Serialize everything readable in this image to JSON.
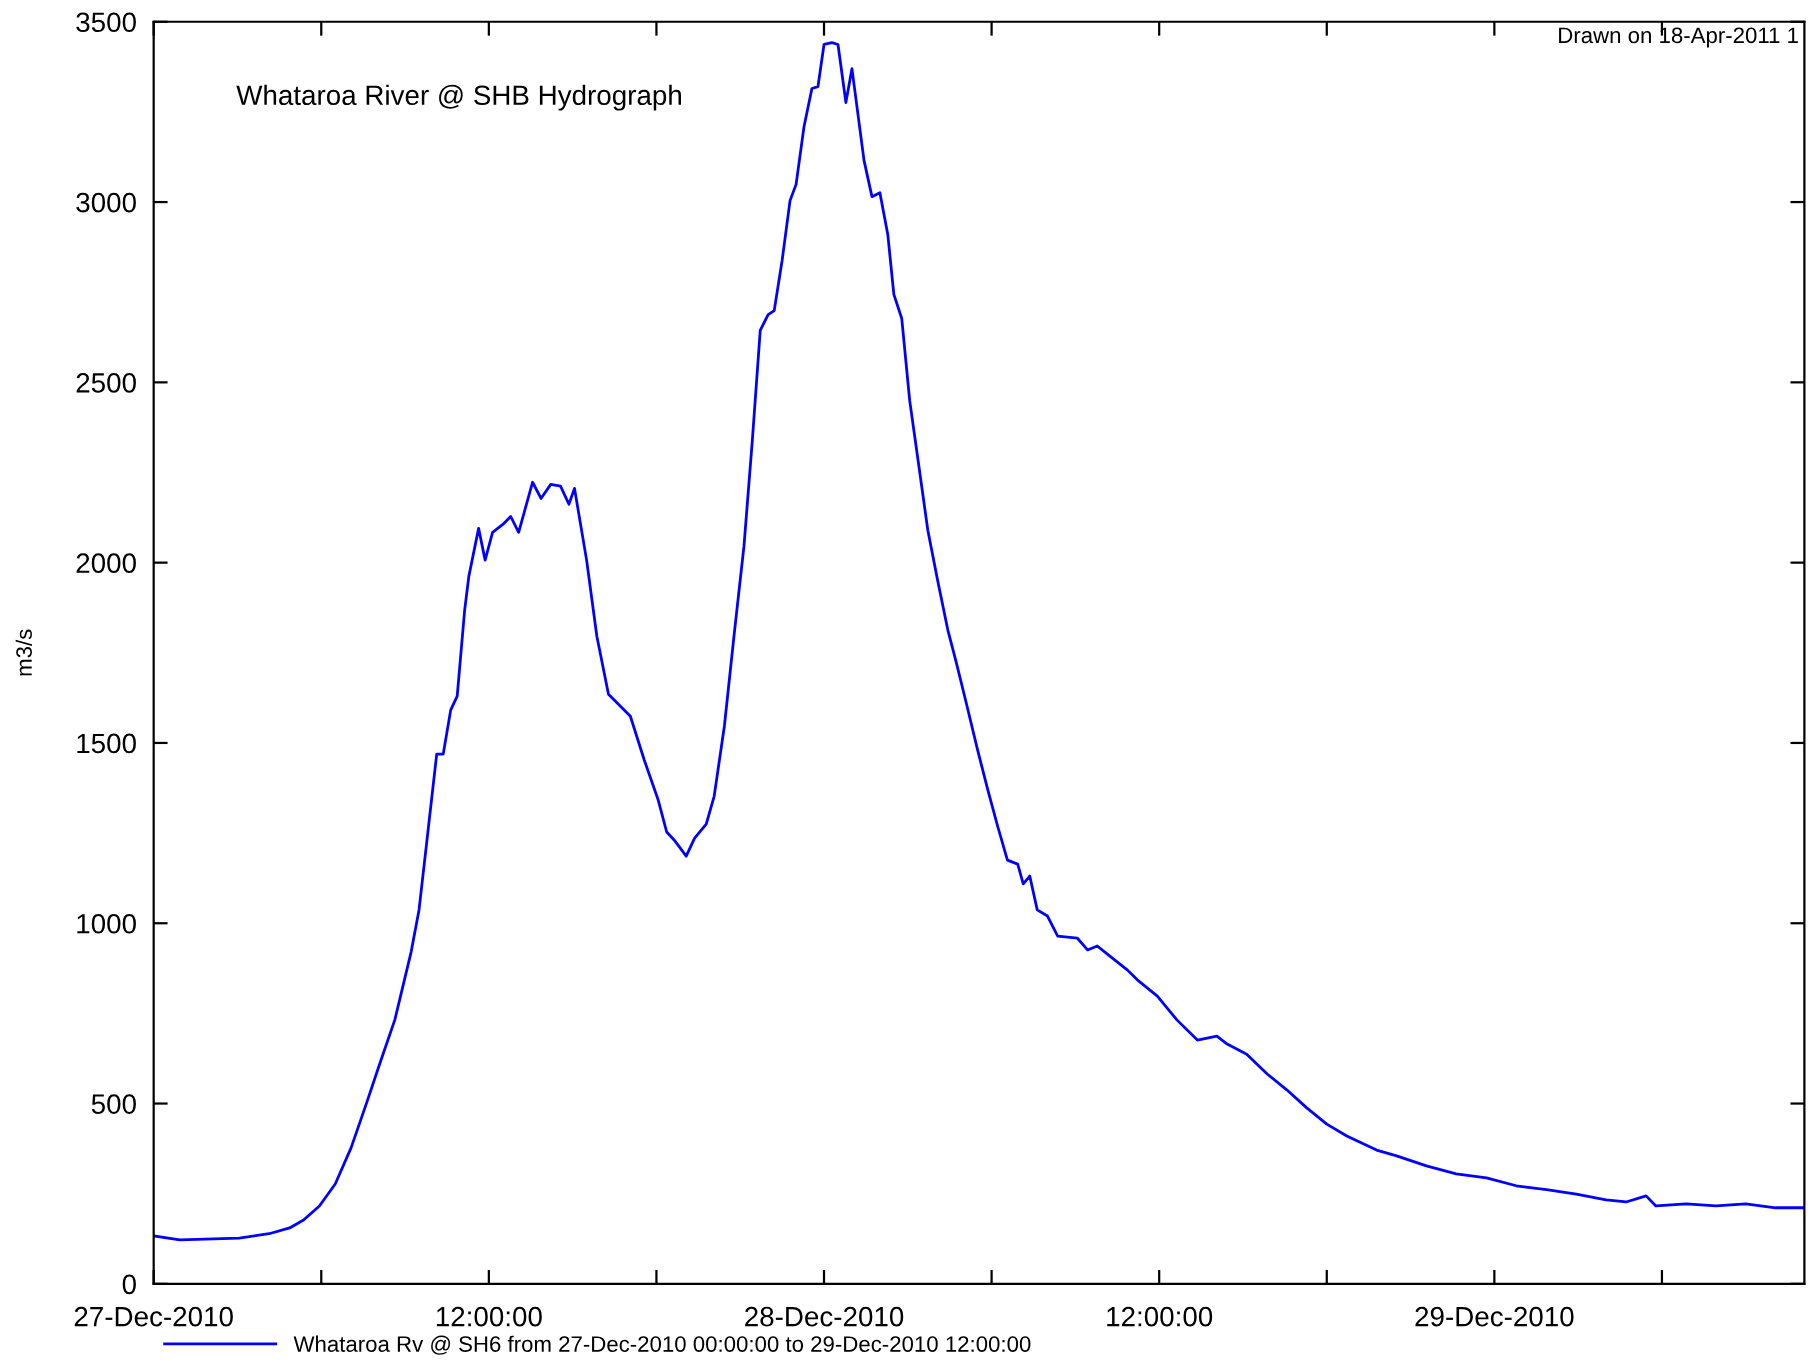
{
  "chart_data": {
    "type": "line",
    "title": "Whataroa River @ SHB Hydrograph",
    "ylabel": "m3/s",
    "annotations": [
      "Drawn on 18-Apr-2011 1"
    ],
    "x": [
      "2010-12-27T00:00",
      "2010-12-27T00:56",
      "2010-12-27T03:04",
      "2010-12-27T04:08",
      "2010-12-27T04:52",
      "2010-12-27T05:22",
      "2010-12-27T05:56",
      "2010-12-27T06:30",
      "2010-12-27T07:04",
      "2010-12-27T07:38",
      "2010-12-27T08:04",
      "2010-12-27T08:38",
      "2010-12-27T09:13",
      "2010-12-27T09:30",
      "2010-12-27T09:47",
      "2010-12-27T10:08",
      "2010-12-27T10:22",
      "2010-12-27T10:38",
      "2010-12-27T10:52",
      "2010-12-27T11:08",
      "2010-12-27T11:17",
      "2010-12-27T11:38",
      "2010-12-27T11:52",
      "2010-12-27T12:08",
      "2010-12-27T12:30",
      "2010-12-27T12:47",
      "2010-12-27T13:04",
      "2010-12-27T13:34",
      "2010-12-27T13:52",
      "2010-12-27T14:13",
      "2010-12-27T14:34",
      "2010-12-27T14:52",
      "2010-12-27T15:04",
      "2010-12-27T15:30",
      "2010-12-27T15:52",
      "2010-12-27T16:17",
      "2010-12-27T17:04",
      "2010-12-27T17:34",
      "2010-12-27T18:04",
      "2010-12-27T18:22",
      "2010-12-27T18:38",
      "2010-12-27T19:04",
      "2010-12-27T19:22",
      "2010-12-27T19:47",
      "2010-12-27T20:04",
      "2010-12-27T20:26",
      "2010-12-27T20:47",
      "2010-12-27T21:08",
      "2010-12-27T21:26",
      "2010-12-27T21:43",
      "2010-12-27T22:00",
      "2010-12-27T22:13",
      "2010-12-27T22:30",
      "2010-12-27T22:47",
      "2010-12-27T23:00",
      "2010-12-27T23:17",
      "2010-12-27T23:34",
      "2010-12-27T23:47",
      "2010-12-28T00:00",
      "2010-12-28T00:17",
      "2010-12-28T00:30",
      "2010-12-28T00:47",
      "2010-12-28T01:00",
      "2010-12-28T01:26",
      "2010-12-28T01:43",
      "2010-12-28T02:00",
      "2010-12-28T02:17",
      "2010-12-28T02:30",
      "2010-12-28T02:47",
      "2010-12-28T03:04",
      "2010-12-28T03:22",
      "2010-12-28T03:43",
      "2010-12-28T04:04",
      "2010-12-28T04:26",
      "2010-12-28T04:43",
      "2010-12-28T05:04",
      "2010-12-28T05:30",
      "2010-12-28T05:52",
      "2010-12-28T06:13",
      "2010-12-28T06:34",
      "2010-12-28T06:56",
      "2010-12-28T07:08",
      "2010-12-28T07:22",
      "2010-12-28T07:38",
      "2010-12-28T08:00",
      "2010-12-28T08:22",
      "2010-12-28T09:04",
      "2010-12-28T09:26",
      "2010-12-28T09:47",
      "2010-12-28T10:08",
      "2010-12-28T10:52",
      "2010-12-28T11:13",
      "2010-12-28T11:56",
      "2010-12-28T12:38",
      "2010-12-28T13:22",
      "2010-12-28T14:04",
      "2010-12-28T14:26",
      "2010-12-28T15:08",
      "2010-12-28T15:52",
      "2010-12-28T16:34",
      "2010-12-28T17:17",
      "2010-12-28T18:00",
      "2010-12-28T18:43",
      "2010-12-28T19:47",
      "2010-12-28T20:30",
      "2010-12-28T21:34",
      "2010-12-28T22:38",
      "2010-12-28T23:43",
      "2010-12-29T00:47",
      "2010-12-29T01:52",
      "2010-12-29T02:56",
      "2010-12-29T04:00",
      "2010-12-29T04:43",
      "2010-12-29T05:26",
      "2010-12-29T05:47",
      "2010-12-29T06:52",
      "2010-12-29T07:56",
      "2010-12-29T09:00",
      "2010-12-29T10:04",
      "2010-12-29T11:04"
    ],
    "series": [
      {
        "name": "Whataroa Rv @ SH6 from 27-Dec-2010 00:00:00 to 29-Dec-2010 12:00:00",
        "color": "#0000ff",
        "values": [
          133,
          122,
          127,
          139,
          155,
          177,
          216,
          277,
          377,
          504,
          604,
          732,
          920,
          1037,
          1230,
          1469,
          1469,
          1591,
          1630,
          1868,
          1962,
          2095,
          2007,
          2084,
          2106,
          2128,
          2084,
          2223,
          2178,
          2217,
          2212,
          2162,
          2206,
          2007,
          1796,
          1635,
          1574,
          1452,
          1341,
          1253,
          1231,
          1186,
          1236,
          1275,
          1352,
          1547,
          1801,
          2045,
          2339,
          2644,
          2688,
          2699,
          2838,
          3004,
          3049,
          3209,
          3315,
          3320,
          3437,
          3442,
          3437,
          3276,
          3370,
          3115,
          3015,
          3026,
          2910,
          2744,
          2677,
          2450,
          2284,
          2090,
          1951,
          1813,
          1729,
          1619,
          1480,
          1369,
          1269,
          1175,
          1164,
          1109,
          1131,
          1037,
          1020,
          964,
          959,
          926,
          937,
          915,
          870,
          843,
          798,
          732,
          676,
          687,
          665,
          637,
          582,
          538,
          488,
          443,
          410,
          371,
          355,
          327,
          305,
          294,
          272,
          261,
          249,
          233,
          227,
          244,
          216,
          222,
          216,
          222,
          211,
          211
        ]
      }
    ],
    "xlim": [
      "2010-12-27T00:00",
      "2010-12-29T11:06"
    ],
    "xticks": [
      {
        "value": "2010-12-27T00:00",
        "label": "27-Dec-2010"
      },
      {
        "value": "2010-12-27T06:00",
        "label": null
      },
      {
        "value": "2010-12-27T12:00",
        "label": "12:00:00"
      },
      {
        "value": "2010-12-27T18:00",
        "label": null
      },
      {
        "value": "2010-12-28T00:00",
        "label": "28-Dec-2010"
      },
      {
        "value": "2010-12-28T06:00",
        "label": null
      },
      {
        "value": "2010-12-28T12:00",
        "label": "12:00:00"
      },
      {
        "value": "2010-12-28T18:00",
        "label": null
      },
      {
        "value": "2010-12-29T00:00",
        "label": "29-Dec-2010"
      },
      {
        "value": "2010-12-29T06:00",
        "label": null
      }
    ],
    "ylim": [
      0,
      3500
    ],
    "yticks": [
      0,
      500,
      1000,
      1500,
      2000,
      2500,
      3000,
      3500
    ],
    "grid": false,
    "legend": "bottom",
    "marker": "none",
    "line_style": "solid"
  }
}
